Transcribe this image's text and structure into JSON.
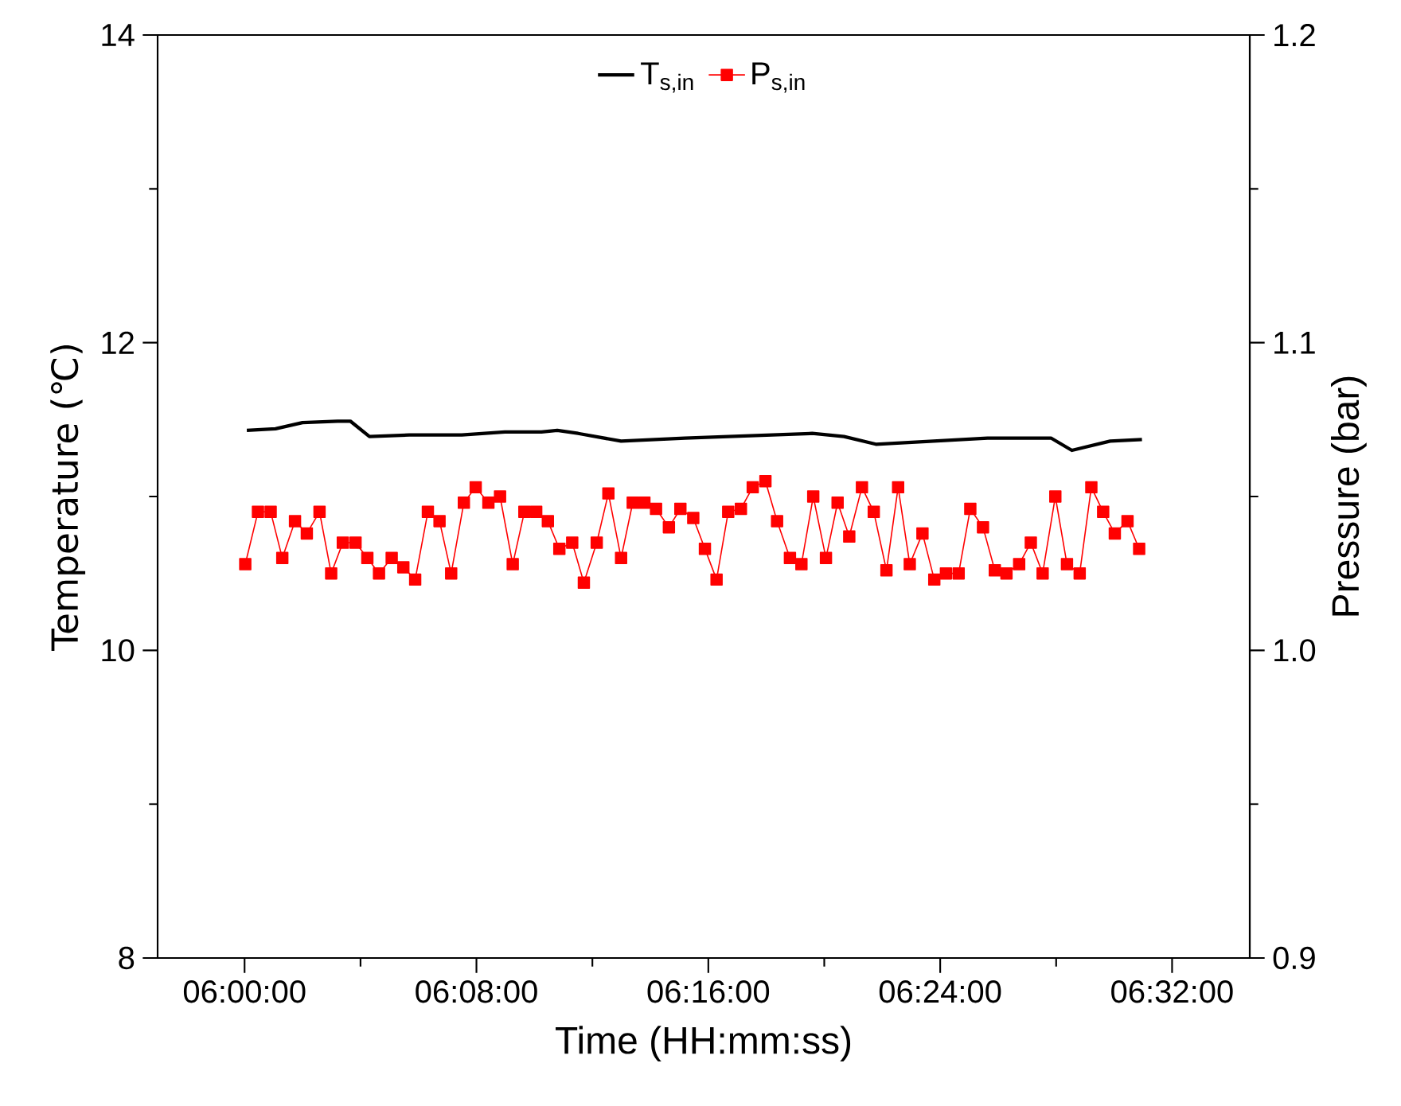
{
  "chart_data": {
    "type": "line",
    "xlabel": "Time (HH:mm:ss)",
    "ylabel": "Temperature (℃)",
    "y2label": "Pressure (bar)",
    "xlim": [
      5.95,
      6.578
    ],
    "ylim": [
      8,
      14
    ],
    "y2lim": [
      0.9,
      1.2
    ],
    "xticks": [
      {
        "value": 6.0,
        "label": "06:00:00"
      },
      {
        "value": 6.06667,
        "label": null
      },
      {
        "value": 6.13333,
        "label": "06:08:00"
      },
      {
        "value": 6.2,
        "label": null
      },
      {
        "value": 6.26667,
        "label": "06:16:00"
      },
      {
        "value": 6.33333,
        "label": null
      },
      {
        "value": 6.4,
        "label": "06:24:00"
      },
      {
        "value": 6.46667,
        "label": null
      },
      {
        "value": 6.53333,
        "label": "06:32:00"
      }
    ],
    "yticks": [
      8,
      {
        "value": 9,
        "label": null
      },
      10,
      {
        "value": 11,
        "label": null
      },
      12,
      {
        "value": 13,
        "label": null
      },
      14
    ],
    "y2ticks": [
      0.9,
      {
        "value": 0.95,
        "label": null
      },
      {
        "value": 1.0,
        "label": "1.0"
      },
      {
        "value": 1.05,
        "label": null
      },
      1.1,
      {
        "value": 1.15,
        "label": null
      },
      1.2
    ],
    "legend": "top",
    "series": [
      {
        "name": "T$_{s,in}$",
        "color": "#000000",
        "marker": "none",
        "x": [
          6.0013,
          6.0178,
          6.0333,
          6.0535,
          6.0608,
          6.0718,
          6.0947,
          6.1249,
          6.1497,
          6.1707,
          6.1798,
          6.1918,
          6.2165,
          6.2532,
          6.3264,
          6.3447,
          6.363,
          6.4272,
          6.4637,
          6.4757,
          6.4977,
          6.516
        ],
        "values": [
          11.43,
          11.44,
          11.48,
          11.49,
          11.49,
          11.39,
          11.4,
          11.4,
          11.42,
          11.42,
          11.43,
          11.41,
          11.36,
          11.38,
          11.41,
          11.39,
          11.34,
          11.38,
          11.38,
          11.3,
          11.36,
          11.37
        ]
      },
      {
        "name": "P$_{s,in}$",
        "color": "#ff0000",
        "marker": "square",
        "axis": "y2",
        "x": [
          6.0004,
          6.0077,
          6.015,
          6.0217,
          6.029,
          6.0358,
          6.0431,
          6.0498,
          6.0565,
          6.0638,
          6.0706,
          6.0773,
          6.0846,
          6.0913,
          6.0981,
          6.1054,
          6.1121,
          6.1188,
          6.1261,
          6.1329,
          6.1402,
          6.1469,
          6.1542,
          6.1609,
          6.1677,
          6.1744,
          6.181,
          6.1884,
          6.1951,
          6.2025,
          6.2092,
          6.2165,
          6.2232,
          6.2299,
          6.2366,
          6.244,
          6.2506,
          6.258,
          6.2647,
          6.2714,
          6.2781,
          6.2854,
          6.2922,
          6.2995,
          6.3062,
          6.3136,
          6.3202,
          6.327,
          6.3343,
          6.341,
          6.3477,
          6.355,
          6.3618,
          6.3691,
          6.3758,
          6.3825,
          6.3898,
          6.3966,
          6.4033,
          6.4106,
          6.4173,
          6.4246,
          6.4314,
          6.4381,
          6.4454,
          6.4521,
          6.4589,
          6.4662,
          6.4729,
          6.4802,
          6.4869,
          6.4937,
          6.5004,
          6.5077,
          6.5144
        ],
        "values": [
          1.028,
          1.045,
          1.045,
          1.03,
          1.042,
          1.038,
          1.045,
          1.025,
          1.035,
          1.035,
          1.03,
          1.025,
          1.03,
          1.027,
          1.023,
          1.045,
          1.042,
          1.025,
          1.048,
          1.053,
          1.048,
          1.05,
          1.028,
          1.045,
          1.045,
          1.042,
          1.033,
          1.035,
          1.022,
          1.035,
          1.051,
          1.03,
          1.048,
          1.048,
          1.046,
          1.04,
          1.046,
          1.043,
          1.033,
          1.023,
          1.045,
          1.046,
          1.053,
          1.055,
          1.042,
          1.03,
          1.028,
          1.05,
          1.03,
          1.048,
          1.037,
          1.053,
          1.045,
          1.026,
          1.053,
          1.028,
          1.038,
          1.023,
          1.025,
          1.025,
          1.046,
          1.04,
          1.026,
          1.025,
          1.028,
          1.035,
          1.025,
          1.05,
          1.028,
          1.025,
          1.053,
          1.045,
          1.038,
          1.042,
          1.033
        ]
      }
    ]
  }
}
